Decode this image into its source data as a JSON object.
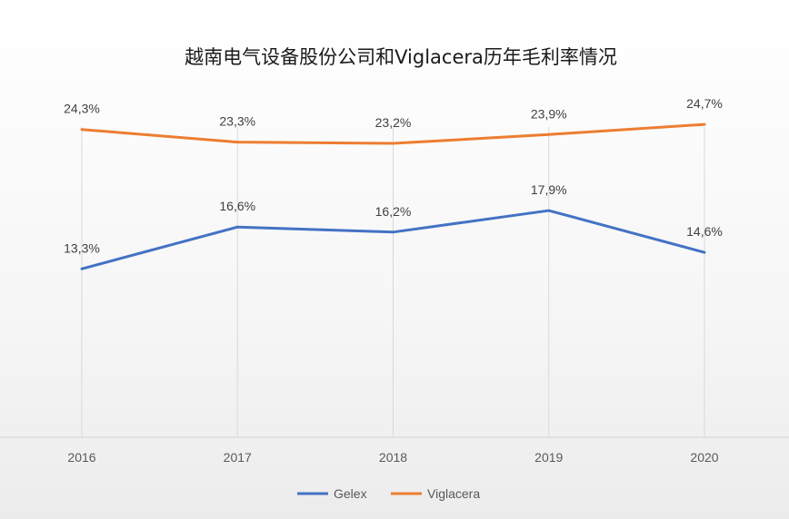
{
  "chart_data": {
    "type": "line",
    "title": "越南电气设备股份公司和Viglacera历年毛利率情况",
    "categories": [
      "2016",
      "2017",
      "2018",
      "2019",
      "2020"
    ],
    "series": [
      {
        "name": "Gelex",
        "color": "#4472c4",
        "values": [
          13.3,
          16.6,
          16.2,
          17.9,
          14.6
        ],
        "labels": [
          "13,3%",
          "16,6%",
          "16,2%",
          "17,9%",
          "14,6%"
        ]
      },
      {
        "name": "Viglacera",
        "color": "#ed7d31",
        "values": [
          24.3,
          23.3,
          23.2,
          23.9,
          24.7
        ],
        "labels": [
          "24,3%",
          "23,3%",
          "23,2%",
          "23,9%",
          "24,7%"
        ]
      }
    ],
    "ylim": [
      0,
      27
    ],
    "grid": "vertical",
    "legend": "bottom-center"
  }
}
